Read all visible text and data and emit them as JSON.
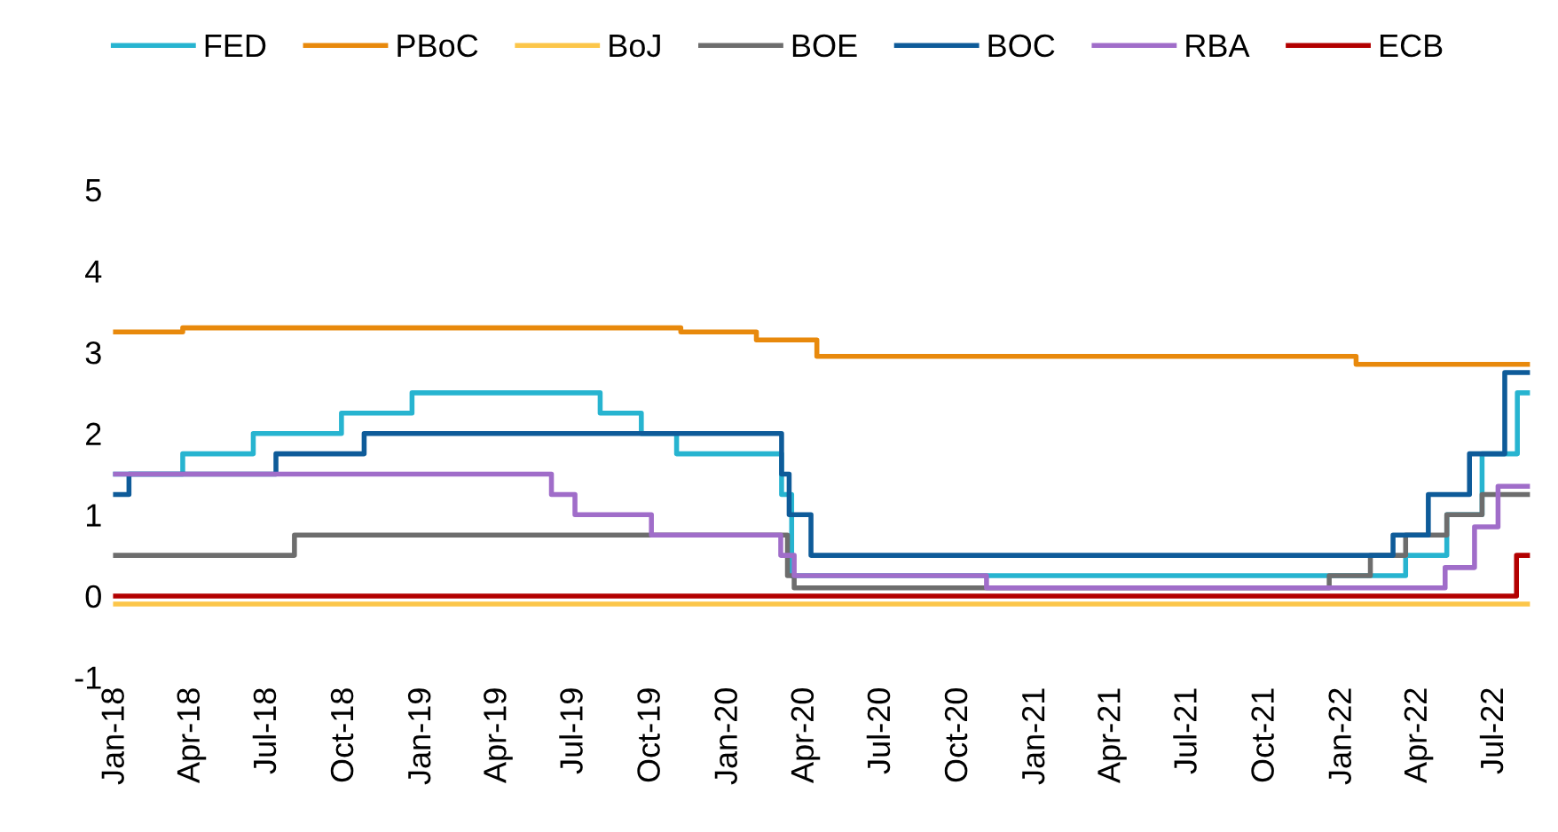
{
  "chart_data": {
    "type": "step",
    "xlim": [
      "2017-12-28",
      "2022-08-12"
    ],
    "ylim": [
      -1,
      5
    ],
    "yticks": [
      -1,
      0,
      1,
      2,
      3,
      4,
      5
    ],
    "grid": false,
    "legend": "top",
    "line_style": "solid",
    "marker": "none",
    "xticks": [
      {
        "value": "2018-01-01",
        "label": "Jan-18"
      },
      {
        "value": "2018-04-01",
        "label": "Apr-18"
      },
      {
        "value": "2018-07-01",
        "label": "Jul-18"
      },
      {
        "value": "2018-10-01",
        "label": "Oct-18"
      },
      {
        "value": "2019-01-01",
        "label": "Jan-19"
      },
      {
        "value": "2019-04-01",
        "label": "Apr-19"
      },
      {
        "value": "2019-07-01",
        "label": "Jul-19"
      },
      {
        "value": "2019-10-01",
        "label": "Oct-19"
      },
      {
        "value": "2020-01-01",
        "label": "Jan-20"
      },
      {
        "value": "2020-04-01",
        "label": "Apr-20"
      },
      {
        "value": "2020-07-01",
        "label": "Jul-20"
      },
      {
        "value": "2020-10-01",
        "label": "Oct-20"
      },
      {
        "value": "2021-01-01",
        "label": "Jan-21"
      },
      {
        "value": "2021-04-01",
        "label": "Apr-21"
      },
      {
        "value": "2021-07-01",
        "label": "Jul-21"
      },
      {
        "value": "2021-10-01",
        "label": "Oct-21"
      },
      {
        "value": "2022-01-01",
        "label": "Jan-22"
      },
      {
        "value": "2022-04-01",
        "label": "Apr-22"
      },
      {
        "value": "2022-07-01",
        "label": "Jul-22"
      }
    ],
    "series": [
      {
        "name": "FED",
        "color": "#27b4d0",
        "x": [
          "2018-01-01",
          "2018-03-22",
          "2018-06-14",
          "2018-09-27",
          "2018-12-20",
          "2019-08-01",
          "2019-09-19",
          "2019-10-31",
          "2020-03-04",
          "2020-03-16",
          "2022-03-17",
          "2022-05-05",
          "2022-06-16",
          "2022-07-28",
          "2022-08-10"
        ],
        "values": [
          1.5,
          1.75,
          2.0,
          2.25,
          2.5,
          2.25,
          2.0,
          1.75,
          1.25,
          0.25,
          0.5,
          1.0,
          1.75,
          2.5,
          2.5
        ]
      },
      {
        "name": "PBoC",
        "color": "#e8890c",
        "x": [
          "2018-01-01",
          "2018-03-22",
          "2019-11-05",
          "2020-02-03",
          "2020-04-15",
          "2022-01-17",
          "2022-08-10"
        ],
        "values": [
          3.25,
          3.3,
          3.25,
          3.15,
          2.95,
          2.85,
          2.85
        ]
      },
      {
        "name": "BoJ",
        "color": "#fcc64a",
        "x": [
          "2018-01-01",
          "2022-08-10"
        ],
        "values": [
          -0.1,
          -0.1
        ]
      },
      {
        "name": "BOE",
        "color": "#6d6d6d",
        "x": [
          "2018-01-01",
          "2018-08-02",
          "2020-03-11",
          "2020-03-19",
          "2021-12-16",
          "2022-02-03",
          "2022-03-17",
          "2022-05-05",
          "2022-06-16",
          "2022-08-10"
        ],
        "values": [
          0.5,
          0.75,
          0.25,
          0.1,
          0.25,
          0.5,
          0.75,
          1.0,
          1.25,
          1.25
        ]
      },
      {
        "name": "BOC",
        "color": "#0e5b99",
        "x": [
          "2018-01-01",
          "2018-01-17",
          "2018-07-11",
          "2018-10-24",
          "2020-03-04",
          "2020-03-13",
          "2020-03-27",
          "2020-04-08",
          "2022-03-02",
          "2022-04-13",
          "2022-06-01",
          "2022-07-13",
          "2022-08-10"
        ],
        "values": [
          1.25,
          1.5,
          1.75,
          2.0,
          1.5,
          1.0,
          1.0,
          0.5,
          0.75,
          1.25,
          1.75,
          2.75,
          2.75
        ]
      },
      {
        "name": "RBA",
        "color": "#a06dc9",
        "x": [
          "2018-01-01",
          "2019-06-04",
          "2019-07-02",
          "2019-10-01",
          "2020-03-03",
          "2020-03-19",
          "2020-11-03",
          "2022-05-03",
          "2022-06-07",
          "2022-07-05",
          "2022-08-10"
        ],
        "values": [
          1.5,
          1.25,
          1.0,
          0.75,
          0.5,
          0.25,
          0.1,
          0.35,
          0.85,
          1.35,
          1.35
        ]
      },
      {
        "name": "ECB",
        "color": "#b30000",
        "x": [
          "2018-01-01",
          "2022-07-27",
          "2022-08-10"
        ],
        "values": [
          0.0,
          0.5,
          0.5
        ]
      }
    ]
  }
}
